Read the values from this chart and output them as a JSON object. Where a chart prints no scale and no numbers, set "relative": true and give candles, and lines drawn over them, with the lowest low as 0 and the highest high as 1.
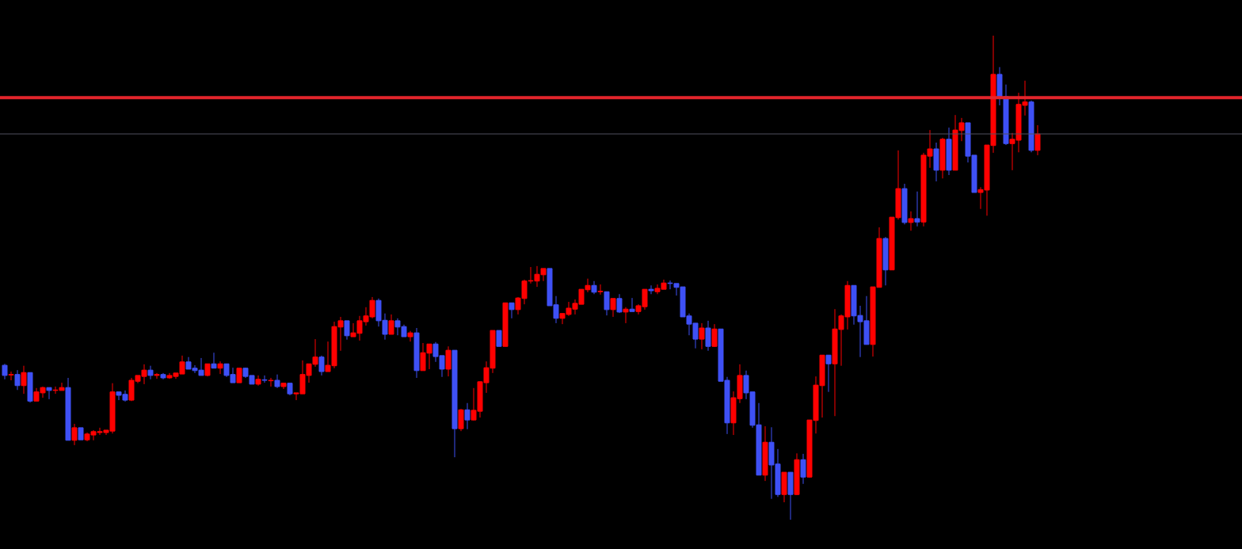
{
  "chart_data": {
    "type": "candlestick",
    "relative": true,
    "categories": [
      null,
      null,
      null,
      null,
      null,
      null,
      null,
      null,
      null,
      null,
      null,
      null,
      null,
      null,
      null,
      null,
      null,
      null,
      null,
      null,
      null,
      null,
      null,
      null,
      null,
      null,
      null,
      null,
      null,
      null,
      null,
      null,
      null,
      null,
      null,
      null,
      null,
      null,
      null,
      null,
      null,
      null,
      null,
      null,
      null,
      null,
      null,
      null,
      null,
      null,
      null,
      null,
      null,
      null,
      null,
      null,
      null,
      null,
      null,
      null,
      null,
      null,
      null,
      null,
      null,
      null,
      null,
      null,
      null,
      null,
      null,
      null,
      null,
      null,
      null,
      null,
      null,
      null,
      null,
      null,
      null,
      null,
      null,
      null,
      null,
      null,
      null,
      null,
      null,
      null,
      null,
      null,
      null,
      null,
      null,
      null,
      null,
      null,
      null,
      null,
      null,
      null,
      null,
      null,
      null,
      null,
      null,
      null,
      null,
      null,
      null,
      null,
      null,
      null,
      null,
      null,
      null,
      null,
      null,
      null,
      null,
      null,
      null,
      null,
      null,
      null,
      null,
      null,
      null,
      null,
      null,
      null,
      null,
      null,
      null,
      null,
      null,
      null,
      null,
      null,
      null,
      null,
      null,
      null,
      null,
      null,
      null,
      null,
      null,
      null,
      null,
      null,
      null,
      null,
      null,
      null,
      null,
      null,
      null,
      null,
      null,
      null,
      null,
      null
    ],
    "ohlc": [
      [
        0.319,
        0.322,
        0.29,
        0.298
      ],
      [
        0.299,
        0.306,
        0.288,
        0.3
      ],
      [
        0.3,
        0.309,
        0.268,
        0.277
      ],
      [
        0.277,
        0.318,
        0.26,
        0.304
      ],
      [
        0.304,
        0.304,
        0.242,
        0.245
      ],
      [
        0.245,
        0.272,
        0.245,
        0.264
      ],
      [
        0.262,
        0.275,
        0.252,
        0.273
      ],
      [
        0.273,
        0.273,
        0.249,
        0.267
      ],
      [
        0.267,
        0.275,
        0.26,
        0.268
      ],
      [
        0.267,
        0.283,
        0.267,
        0.273
      ],
      [
        0.273,
        0.293,
        0.164,
        0.164
      ],
      [
        0.164,
        0.198,
        0.154,
        0.19
      ],
      [
        0.19,
        0.19,
        0.165,
        0.165
      ],
      [
        0.165,
        0.18,
        0.162,
        0.177
      ],
      [
        0.175,
        0.185,
        0.164,
        0.182
      ],
      [
        0.18,
        0.19,
        0.175,
        0.182
      ],
      [
        0.18,
        0.185,
        0.175,
        0.185
      ],
      [
        0.183,
        0.282,
        0.178,
        0.264
      ],
      [
        0.264,
        0.264,
        0.247,
        0.257
      ],
      [
        0.259,
        0.267,
        0.244,
        0.247
      ],
      [
        0.247,
        0.293,
        0.245,
        0.288
      ],
      [
        0.286,
        0.298,
        0.282,
        0.298
      ],
      [
        0.296,
        0.321,
        0.28,
        0.309
      ],
      [
        0.309,
        0.318,
        0.29,
        0.298
      ],
      [
        0.298,
        0.303,
        0.291,
        0.3
      ],
      [
        0.3,
        0.303,
        0.29,
        0.293
      ],
      [
        0.293,
        0.303,
        0.291,
        0.298
      ],
      [
        0.296,
        0.303,
        0.291,
        0.303
      ],
      [
        0.301,
        0.339,
        0.301,
        0.326
      ],
      [
        0.326,
        0.336,
        0.311,
        0.311
      ],
      [
        0.313,
        0.319,
        0.303,
        0.308
      ],
      [
        0.309,
        0.334,
        0.298,
        0.298
      ],
      [
        0.298,
        0.322,
        0.296,
        0.322
      ],
      [
        0.322,
        0.345,
        0.313,
        0.313
      ],
      [
        0.313,
        0.327,
        0.301,
        0.322
      ],
      [
        0.322,
        0.322,
        0.295,
        0.298
      ],
      [
        0.3,
        0.314,
        0.283,
        0.283
      ],
      [
        0.283,
        0.313,
        0.283,
        0.313
      ],
      [
        0.313,
        0.314,
        0.293,
        0.296
      ],
      [
        0.298,
        0.298,
        0.28,
        0.28
      ],
      [
        0.28,
        0.298,
        0.277,
        0.29
      ],
      [
        0.289,
        0.298,
        0.283,
        0.288
      ],
      [
        0.287,
        0.293,
        0.275,
        0.288
      ],
      [
        0.288,
        0.3,
        0.272,
        0.275
      ],
      [
        0.275,
        0.282,
        0.27,
        0.282
      ],
      [
        0.282,
        0.282,
        0.257,
        0.26
      ],
      [
        0.26,
        0.262,
        0.247,
        0.262
      ],
      [
        0.26,
        0.329,
        0.26,
        0.3
      ],
      [
        0.298,
        0.322,
        0.283,
        0.322
      ],
      [
        0.321,
        0.373,
        0.316,
        0.336
      ],
      [
        0.336,
        0.339,
        0.298,
        0.306
      ],
      [
        0.306,
        0.368,
        0.306,
        0.319
      ],
      [
        0.318,
        0.409,
        0.313,
        0.399
      ],
      [
        0.398,
        0.419,
        0.349,
        0.411
      ],
      [
        0.411,
        0.411,
        0.372,
        0.38
      ],
      [
        0.378,
        0.406,
        0.378,
        0.386
      ],
      [
        0.385,
        0.421,
        0.37,
        0.411
      ],
      [
        0.409,
        0.439,
        0.401,
        0.421
      ],
      [
        0.419,
        0.46,
        0.416,
        0.453
      ],
      [
        0.453,
        0.457,
        0.399,
        0.411
      ],
      [
        0.412,
        0.426,
        0.372,
        0.383
      ],
      [
        0.383,
        0.424,
        0.383,
        0.411
      ],
      [
        0.411,
        0.416,
        0.381,
        0.398
      ],
      [
        0.399,
        0.403,
        0.378,
        0.378
      ],
      [
        0.378,
        0.39,
        0.368,
        0.386
      ],
      [
        0.386,
        0.396,
        0.293,
        0.308
      ],
      [
        0.308,
        0.365,
        0.308,
        0.345
      ],
      [
        0.344,
        0.363,
        0.311,
        0.363
      ],
      [
        0.363,
        0.367,
        0.326,
        0.337
      ],
      [
        0.339,
        0.339,
        0.295,
        0.311
      ],
      [
        0.311,
        0.358,
        0.296,
        0.35
      ],
      [
        0.35,
        0.35,
        0.129,
        0.188
      ],
      [
        0.188,
        0.229,
        0.183,
        0.227
      ],
      [
        0.227,
        0.241,
        0.187,
        0.206
      ],
      [
        0.206,
        0.272,
        0.205,
        0.226
      ],
      [
        0.224,
        0.286,
        0.211,
        0.285
      ],
      [
        0.283,
        0.327,
        0.262,
        0.314
      ],
      [
        0.313,
        0.391,
        0.303,
        0.391
      ],
      [
        0.391,
        0.391,
        0.358,
        0.358
      ],
      [
        0.358,
        0.448,
        0.358,
        0.448
      ],
      [
        0.448,
        0.448,
        0.416,
        0.434
      ],
      [
        0.434,
        0.46,
        0.424,
        0.458
      ],
      [
        0.457,
        0.496,
        0.445,
        0.493
      ],
      [
        0.493,
        0.522,
        0.488,
        0.494
      ],
      [
        0.493,
        0.524,
        0.481,
        0.507
      ],
      [
        0.506,
        0.519,
        0.493,
        0.519
      ],
      [
        0.519,
        0.519,
        0.442,
        0.442
      ],
      [
        0.444,
        0.462,
        0.406,
        0.416
      ],
      [
        0.416,
        0.426,
        0.404,
        0.426
      ],
      [
        0.424,
        0.45,
        0.421,
        0.437
      ],
      [
        0.435,
        0.455,
        0.424,
        0.447
      ],
      [
        0.445,
        0.476,
        0.445,
        0.476
      ],
      [
        0.475,
        0.498,
        0.47,
        0.484
      ],
      [
        0.484,
        0.493,
        0.466,
        0.47
      ],
      [
        0.471,
        0.486,
        0.465,
        0.472
      ],
      [
        0.471,
        0.471,
        0.422,
        0.434
      ],
      [
        0.434,
        0.457,
        0.419,
        0.457
      ],
      [
        0.457,
        0.466,
        0.427,
        0.429
      ],
      [
        0.429,
        0.439,
        0.406,
        0.435
      ],
      [
        0.435,
        0.458,
        0.43,
        0.43
      ],
      [
        0.43,
        0.445,
        0.424,
        0.442
      ],
      [
        0.44,
        0.476,
        0.434,
        0.476
      ],
      [
        0.476,
        0.484,
        0.466,
        0.473
      ],
      [
        0.471,
        0.486,
        0.466,
        0.478
      ],
      [
        0.476,
        0.496,
        0.476,
        0.489
      ],
      [
        0.489,
        0.494,
        0.476,
        0.488
      ],
      [
        0.488,
        0.488,
        0.463,
        0.48
      ],
      [
        0.481,
        0.481,
        0.419,
        0.419
      ],
      [
        0.421,
        0.426,
        0.381,
        0.404
      ],
      [
        0.406,
        0.406,
        0.354,
        0.373
      ],
      [
        0.373,
        0.406,
        0.352,
        0.396
      ],
      [
        0.396,
        0.411,
        0.349,
        0.358
      ],
      [
        0.358,
        0.404,
        0.357,
        0.394
      ],
      [
        0.394,
        0.394,
        0.286,
        0.286
      ],
      [
        0.288,
        0.295,
        0.177,
        0.2
      ],
      [
        0.2,
        0.265,
        0.175,
        0.252
      ],
      [
        0.25,
        0.321,
        0.241,
        0.298
      ],
      [
        0.298,
        0.308,
        0.249,
        0.262
      ],
      [
        0.264,
        0.264,
        0.19,
        0.195
      ],
      [
        0.196,
        0.241,
        0.092,
        0.092
      ],
      [
        0.092,
        0.193,
        0.08,
        0.16
      ],
      [
        0.16,
        0.191,
        0.043,
        0.113
      ],
      [
        0.115,
        0.146,
        0.047,
        0.052
      ],
      [
        0.052,
        0.098,
        0.036,
        0.098
      ],
      [
        0.098,
        0.098,
        0,
        0.052
      ],
      [
        0.052,
        0.137,
        0.051,
        0.124
      ],
      [
        0.124,
        0.136,
        0.074,
        0.088
      ],
      [
        0.088,
        0.206,
        0.087,
        0.206
      ],
      [
        0.205,
        0.296,
        0.178,
        0.278
      ],
      [
        0.277,
        0.34,
        0.211,
        0.34
      ],
      [
        0.34,
        0.34,
        0.264,
        0.322
      ],
      [
        0.322,
        0.435,
        0.214,
        0.394
      ],
      [
        0.393,
        0.424,
        0.318,
        0.421
      ],
      [
        0.419,
        0.493,
        0.393,
        0.484
      ],
      [
        0.484,
        0.484,
        0.403,
        0.421
      ],
      [
        0.422,
        0.442,
        0.336,
        0.409
      ],
      [
        0.411,
        0.462,
        0.362,
        0.362
      ],
      [
        0.362,
        0.481,
        0.337,
        0.481
      ],
      [
        0.48,
        0.604,
        0.48,
        0.581
      ],
      [
        0.581,
        0.584,
        0.484,
        0.516
      ],
      [
        0.516,
        0.625,
        0.516,
        0.625
      ],
      [
        0.624,
        0.763,
        0.62,
        0.684
      ],
      [
        0.684,
        0.694,
        0.61,
        0.614
      ],
      [
        0.614,
        0.637,
        0.597,
        0.622
      ],
      [
        0.622,
        0.678,
        0.606,
        0.615
      ],
      [
        0.615,
        0.758,
        0.606,
        0.753
      ],
      [
        0.751,
        0.805,
        0.727,
        0.766
      ],
      [
        0.766,
        0.779,
        0.699,
        0.722
      ],
      [
        0.722,
        0.789,
        0.705,
        0.786
      ],
      [
        0.786,
        0.81,
        0.712,
        0.722
      ],
      [
        0.722,
        0.836,
        0.722,
        0.805
      ],
      [
        0.804,
        0.83,
        0.782,
        0.82
      ],
      [
        0.82,
        0.82,
        0.738,
        0.751
      ],
      [
        0.753,
        0.753,
        0.676,
        0.676
      ],
      [
        0.676,
        0.687,
        0.642,
        0.682
      ],
      [
        0.681,
        0.774,
        0.628,
        0.774
      ],
      [
        0.773,
        1,
        0.758,
        0.92
      ],
      [
        0.92,
        0.935,
        0.856,
        0.872
      ],
      [
        0.874,
        0.899,
        0.774,
        0.777
      ],
      [
        0.777,
        0.799,
        0.722,
        0.786
      ],
      [
        0.784,
        0.882,
        0.759,
        0.858
      ],
      [
        0.856,
        0.907,
        0.835,
        0.863
      ],
      [
        0.863,
        0.866,
        0.759,
        0.763
      ],
      [
        0.763,
        0.815,
        0.753,
        0.797
      ]
    ],
    "colors": [
      "#3f51f5",
      "#ff0000",
      "#3f51f5",
      "#ff0000",
      "#3f51f5",
      "#ff0000",
      "#ff0000",
      "#3f51f5",
      "#ff0000",
      "#ff0000",
      "#3f51f5",
      "#ff0000",
      "#3f51f5",
      "#ff0000",
      "#ff0000",
      "#ff0000",
      "#ff0000",
      "#ff0000",
      "#3f51f5",
      "#3f51f5",
      "#ff0000",
      "#ff0000",
      "#ff0000",
      "#3f51f5",
      "#ff0000",
      "#3f51f5",
      "#ff0000",
      "#ff0000",
      "#ff0000",
      "#3f51f5",
      "#3f51f5",
      "#3f51f5",
      "#ff0000",
      "#3f51f5",
      "#ff0000",
      "#3f51f5",
      "#3f51f5",
      "#ff0000",
      "#3f51f5",
      "#3f51f5",
      "#ff0000",
      "#3f51f5",
      "#ff0000",
      "#3f51f5",
      "#ff0000",
      "#3f51f5",
      "#ff0000",
      "#ff0000",
      "#ff0000",
      "#ff0000",
      "#3f51f5",
      "#ff0000",
      "#ff0000",
      "#ff0000",
      "#3f51f5",
      "#ff0000",
      "#ff0000",
      "#ff0000",
      "#ff0000",
      "#3f51f5",
      "#3f51f5",
      "#ff0000",
      "#3f51f5",
      "#3f51f5",
      "#ff0000",
      "#3f51f5",
      "#ff0000",
      "#ff0000",
      "#3f51f5",
      "#3f51f5",
      "#ff0000",
      "#3f51f5",
      "#ff0000",
      "#3f51f5",
      "#ff0000",
      "#ff0000",
      "#ff0000",
      "#ff0000",
      "#3f51f5",
      "#ff0000",
      "#3f51f5",
      "#ff0000",
      "#ff0000",
      "#ff0000",
      "#ff0000",
      "#ff0000",
      "#3f51f5",
      "#3f51f5",
      "#ff0000",
      "#ff0000",
      "#ff0000",
      "#ff0000",
      "#ff0000",
      "#3f51f5",
      "#ff0000",
      "#3f51f5",
      "#ff0000",
      "#3f51f5",
      "#ff0000",
      "#3f51f5",
      "#ff0000",
      "#ff0000",
      "#3f51f5",
      "#ff0000",
      "#ff0000",
      "#3f51f5",
      "#3f51f5",
      "#3f51f5",
      "#3f51f5",
      "#3f51f5",
      "#ff0000",
      "#3f51f5",
      "#ff0000",
      "#3f51f5",
      "#3f51f5",
      "#ff0000",
      "#ff0000",
      "#3f51f5",
      "#3f51f5",
      "#3f51f5",
      "#ff0000",
      "#3f51f5",
      "#3f51f5",
      "#ff0000",
      "#3f51f5",
      "#ff0000",
      "#3f51f5",
      "#ff0000",
      "#ff0000",
      "#ff0000",
      "#3f51f5",
      "#ff0000",
      "#ff0000",
      "#ff0000",
      "#3f51f5",
      "#3f51f5",
      "#3f51f5",
      "#ff0000",
      "#ff0000",
      "#3f51f5",
      "#ff0000",
      "#ff0000",
      "#3f51f5",
      "#ff0000",
      "#3f51f5",
      "#ff0000",
      "#ff0000",
      "#3f51f5",
      "#ff0000",
      "#3f51f5",
      "#ff0000",
      "#ff0000",
      "#3f51f5",
      "#3f51f5",
      "#ff0000",
      "#ff0000",
      "#ff0000",
      "#3f51f5",
      "#3f51f5",
      "#ff0000",
      "#ff0000",
      "#ff0000",
      "#3f51f5",
      "#ff0000"
    ],
    "ref_lines": [
      {
        "axis": "y",
        "value": 0.872,
        "color": "#e3242b",
        "line_style": "solid"
      },
      {
        "axis": "y",
        "value": 0.797,
        "color": "#50505f",
        "line_style": "solid"
      }
    ]
  }
}
